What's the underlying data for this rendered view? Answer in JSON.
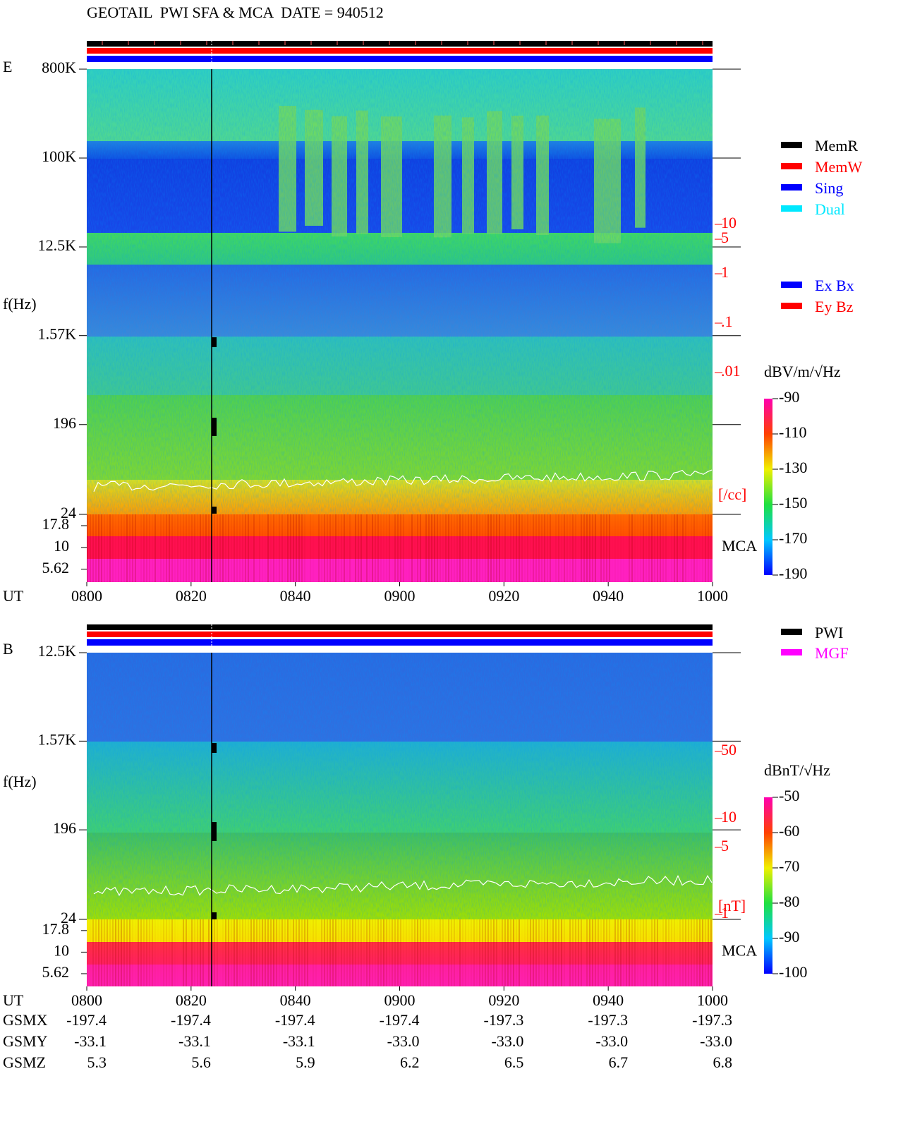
{
  "header": {
    "title": "GEOTAIL  PWI SFA & MCA  DATE = 940512"
  },
  "chart_data": [
    {
      "type": "spectrogram",
      "panel_label": "E",
      "y_label": "f(Hz)",
      "x_label": "UT",
      "log_scale": true,
      "ylim": [
        24,
        800000
      ],
      "yticks": [
        {
          "value": 800000,
          "label": "800K"
        },
        {
          "value": 100000,
          "label": "100K"
        },
        {
          "value": 12500,
          "label": "12.5K"
        },
        {
          "value": 1570,
          "label": "1.57K"
        },
        196,
        24
      ],
      "mca_label": "MCA",
      "mca_ylim": [
        4,
        24
      ],
      "mca_ticks": [
        17.8,
        10,
        5.62
      ],
      "xticks": [
        "0800",
        "0820",
        "0840",
        "0900",
        "0920",
        "0940",
        "1000"
      ],
      "y2lim": [
        0.01,
        10
      ],
      "y2ticks": [
        10,
        5,
        1,
        {
          "value": 0.1,
          "label": ".1"
        },
        {
          "value": 0.01,
          "label": ".01"
        }
      ],
      "y2_label": "[/cc]",
      "y2_color": "#ff0000",
      "colorbar": {
        "label": "dBV/m/√Hz",
        "clim": [
          -190,
          -90
        ],
        "ticks": [
          -90,
          -110,
          -130,
          -150,
          -170,
          -190
        ]
      },
      "legend": [
        {
          "name": "MemR",
          "color": "#000000"
        },
        {
          "name": "MemW",
          "color": "#ff0000"
        },
        {
          "name": "Sing",
          "color": "#0000ff"
        },
        {
          "name": "Dual",
          "color": "#00e8ff"
        }
      ],
      "legend2": [
        {
          "name": "Ex Bx",
          "color": "#0000ff"
        },
        {
          "name": "Ey Bz",
          "color": "#ff0000"
        }
      ]
    },
    {
      "type": "spectrogram",
      "panel_label": "B",
      "y_label": "f(Hz)",
      "x_label": "UT",
      "log_scale": true,
      "ylim": [
        24,
        12500
      ],
      "yticks": [
        {
          "value": 12500,
          "label": "12.5K"
        },
        {
          "value": 1570,
          "label": "1.57K"
        },
        196,
        24
      ],
      "mca_label": "MCA",
      "mca_ylim": [
        4,
        24
      ],
      "mca_ticks": [
        17.8,
        10,
        5.62
      ],
      "xticks": [
        "0800",
        "0820",
        "0840",
        "0900",
        "0920",
        "0940",
        "1000"
      ],
      "y2lim": [
        1,
        50
      ],
      "y2ticks": [
        50,
        10,
        5,
        1
      ],
      "y2_label": "[nT]",
      "y2_color": "#ff0000",
      "colorbar": {
        "label": "dBnT/√Hz",
        "clim": [
          -100,
          -50
        ],
        "ticks": [
          -50,
          -60,
          -70,
          -80,
          -90,
          -100
        ]
      },
      "legend": [
        {
          "name": "PWI",
          "color": "#000000"
        },
        {
          "name": "MGF",
          "color": "#ff00ff"
        }
      ]
    }
  ],
  "orbit": {
    "rows": [
      {
        "label": "GSMX",
        "values": [
          "-197.4",
          "-197.4",
          "-197.4",
          "-197.4",
          "-197.3",
          "-197.3",
          "-197.3"
        ]
      },
      {
        "label": "GSMY",
        "values": [
          "-33.1",
          "-33.1",
          "-33.1",
          "-33.0",
          "-33.0",
          "-33.0",
          "-33.0"
        ]
      },
      {
        "label": "GSMZ",
        "values": [
          "5.3",
          "5.6",
          "5.9",
          "6.2",
          "6.5",
          "6.7",
          "6.8"
        ]
      }
    ]
  }
}
